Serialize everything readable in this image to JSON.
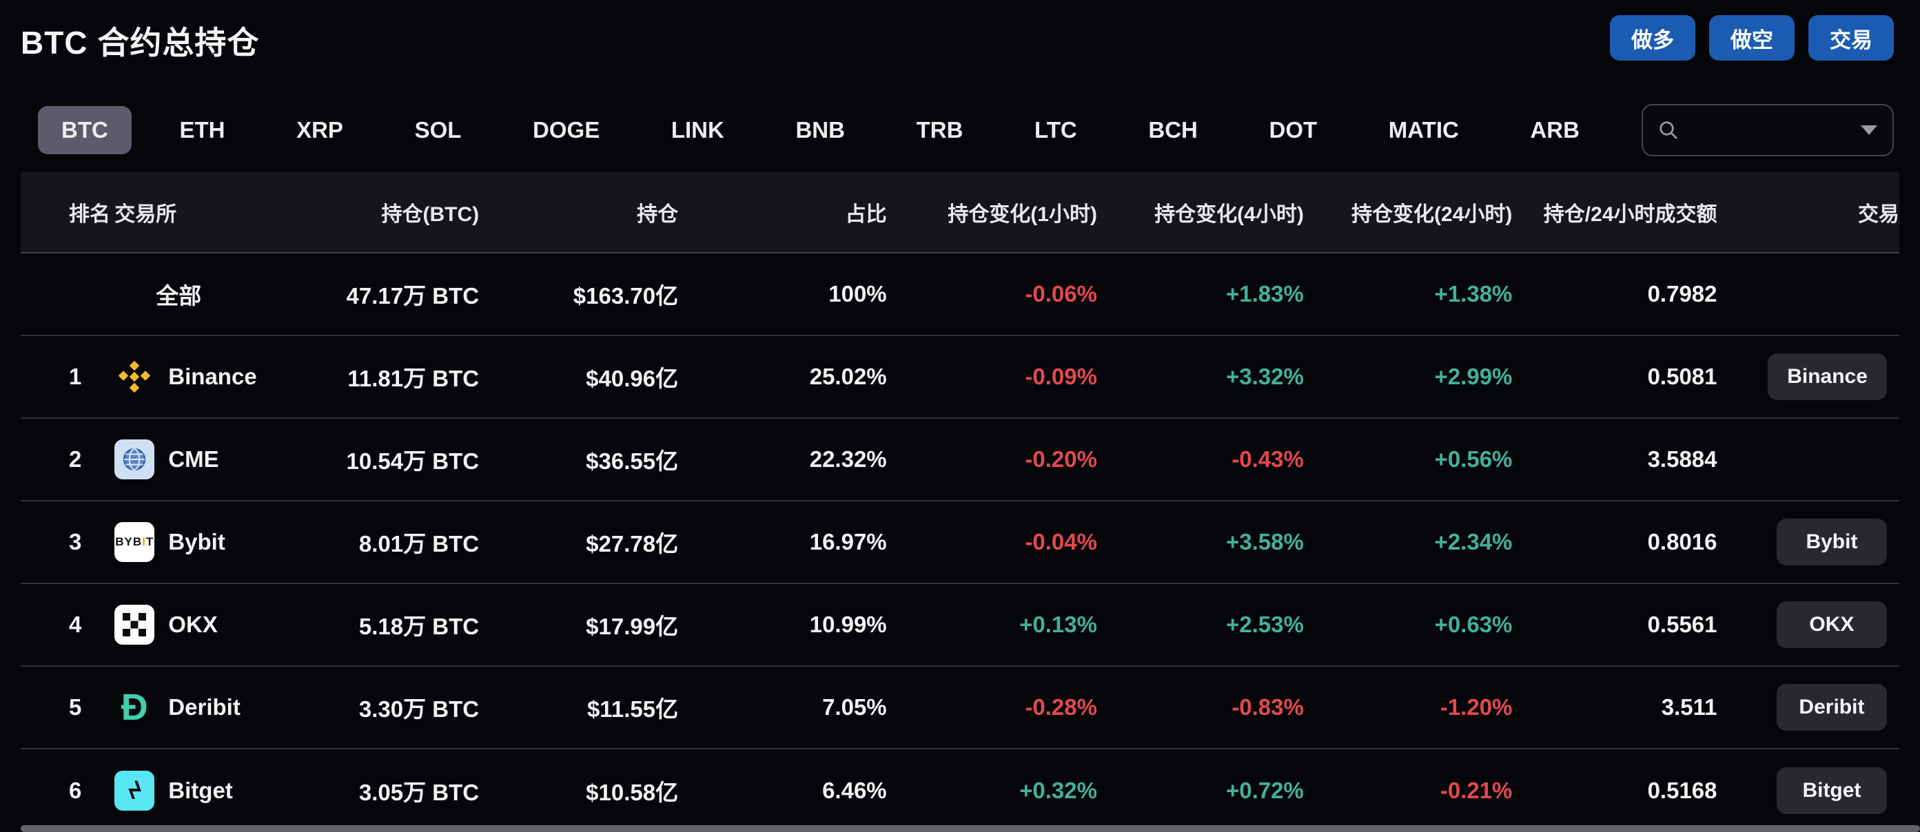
{
  "page": {
    "title": "BTC 合约总持仓"
  },
  "actions": {
    "long": "做多",
    "short": "做空",
    "trade": "交易"
  },
  "tabs": {
    "items": [
      "BTC",
      "ETH",
      "XRP",
      "SOL",
      "DOGE",
      "LINK",
      "BNB",
      "TRB",
      "LTC",
      "BCH",
      "DOT",
      "MATIC",
      "ARB"
    ],
    "active": "BTC"
  },
  "search": {
    "value": "",
    "placeholder": "",
    "icons": [
      "search-icon",
      "chevron-down-icon"
    ]
  },
  "colors": {
    "accent_blue": "#1b5cb2",
    "up_green": "#43b09a",
    "down_red": "#e3494f",
    "active_tab_bg": "#5b5b6b",
    "row_divider": "#303138",
    "header_bg": "#15161a"
  },
  "table": {
    "columns": [
      "排名",
      "交易所",
      "持仓(BTC)",
      "持仓",
      "占比",
      "持仓变化(1小时)",
      "持仓变化(4小时)",
      "持仓变化(24小时)",
      "持仓/24小时成交额",
      "交易"
    ],
    "rows": [
      {
        "rank": "",
        "name": "全部",
        "icon": "none",
        "btc": "47.17万 BTC",
        "usd": "$163.70亿",
        "share": "100%",
        "h1": "-0.06%",
        "h4": "+1.83%",
        "h24": "+1.38%",
        "ratio": "0.7982",
        "trade": ""
      },
      {
        "rank": "1",
        "name": "Binance",
        "icon": "binance-icon",
        "btc": "11.81万 BTC",
        "usd": "$40.96亿",
        "share": "25.02%",
        "h1": "-0.09%",
        "h4": "+3.32%",
        "h24": "+2.99%",
        "ratio": "0.5081",
        "trade": "Binance"
      },
      {
        "rank": "2",
        "name": "CME",
        "icon": "cme-icon",
        "btc": "10.54万 BTC",
        "usd": "$36.55亿",
        "share": "22.32%",
        "h1": "-0.20%",
        "h4": "-0.43%",
        "h24": "+0.56%",
        "ratio": "3.5884",
        "trade": ""
      },
      {
        "rank": "3",
        "name": "Bybit",
        "icon": "bybit-icon",
        "btc": "8.01万 BTC",
        "usd": "$27.78亿",
        "share": "16.97%",
        "h1": "-0.04%",
        "h4": "+3.58%",
        "h24": "+2.34%",
        "ratio": "0.8016",
        "trade": "Bybit"
      },
      {
        "rank": "4",
        "name": "OKX",
        "icon": "okx-icon",
        "btc": "5.18万 BTC",
        "usd": "$17.99亿",
        "share": "10.99%",
        "h1": "+0.13%",
        "h4": "+2.53%",
        "h24": "+0.63%",
        "ratio": "0.5561",
        "trade": "OKX"
      },
      {
        "rank": "5",
        "name": "Deribit",
        "icon": "deribit-icon",
        "btc": "3.30万 BTC",
        "usd": "$11.55亿",
        "share": "7.05%",
        "h1": "-0.28%",
        "h4": "-0.83%",
        "h24": "-1.20%",
        "ratio": "3.511",
        "trade": "Deribit"
      },
      {
        "rank": "6",
        "name": "Bitget",
        "icon": "bitget-icon",
        "btc": "3.05万 BTC",
        "usd": "$10.58亿",
        "share": "6.46%",
        "h1": "+0.32%",
        "h4": "+0.72%",
        "h24": "-0.21%",
        "ratio": "0.5168",
        "trade": "Bitget"
      }
    ]
  }
}
